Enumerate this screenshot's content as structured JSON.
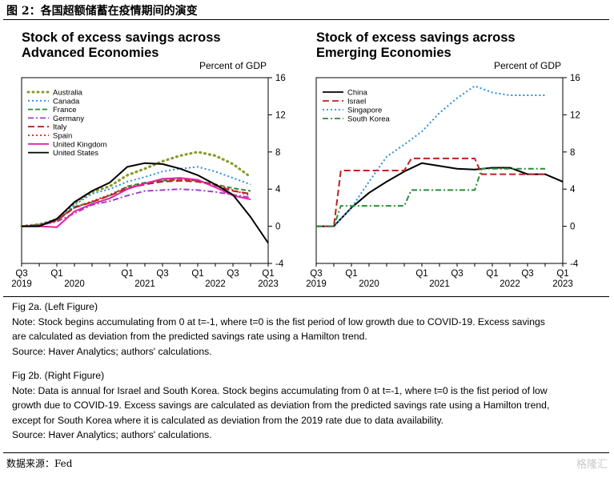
{
  "figure_title": "图 2：各国超额储蓄在疫情期间的演变",
  "source_line": "数据来源：Fed",
  "watermark": "格隆汇",
  "notes": [
    "Fig 2a. (Left Figure)",
    "Note: Stock begins accumulating from 0 at t=-1, where t=0 is the fist period of low growth due to COVID-19. Excess savings",
    "are calculated as deviation from the predicted savings rate using a Hamilton trend.",
    "Source: Haver Analytics; authors' calculations.",
    "Fig 2b. (Right Figure)",
    "Note: Data is annual for Israel and South Korea. Stock begins accumulating from 0 at t=-1, where t=0 is the fist period of low",
    "growth due to COVID-19. Excess savings are calculated as deviation from the predicted savings rate using a Hamilton trend,",
    "except for South Korea where it is calculated as deviation from the 2019 rate due to data availability.",
    "Source: Haver Analytics; authors' calculations."
  ],
  "chart_data": [
    {
      "type": "line",
      "title": "Stock of excess savings across\nAdvanced Economies",
      "ylabel": "Percent of GDP",
      "ylim": [
        -4,
        16
      ],
      "yticks": [
        "-4",
        "0",
        "4",
        "8",
        "12",
        "16"
      ],
      "xlim": [
        2019.5,
        2023.0
      ],
      "xtick_quarters": [
        "Q3",
        "Q1",
        "Q1",
        "Q3",
        "Q1",
        "Q3",
        "Q1"
      ],
      "xtick_years": [
        "2019",
        "2020",
        "2021",
        "2022",
        "2023"
      ],
      "legend_position": "top-left",
      "series": [
        {
          "name": "Australia",
          "color": "#8c9a2b",
          "dash": "dotted-thick",
          "x": [
            2019.5,
            2019.75,
            2020.0,
            2020.25,
            2020.5,
            2020.75,
            2021.0,
            2021.25,
            2021.5,
            2021.75,
            2022.0,
            2022.25,
            2022.5,
            2022.75
          ],
          "y": [
            0,
            0.2,
            0.7,
            2.5,
            3.7,
            4.3,
            5.5,
            6.2,
            7.0,
            7.6,
            8.0,
            7.6,
            6.7,
            5.3
          ]
        },
        {
          "name": "Canada",
          "color": "#2b8fe0",
          "dash": "dotted",
          "x": [
            2019.5,
            2019.75,
            2020.0,
            2020.25,
            2020.5,
            2020.75,
            2021.0,
            2021.25,
            2021.5,
            2021.75,
            2022.0,
            2022.25,
            2022.5,
            2022.75
          ],
          "y": [
            0,
            0.2,
            0.8,
            2.3,
            3.5,
            4.0,
            4.8,
            5.3,
            5.9,
            6.2,
            6.4,
            5.9,
            5.2,
            4.5
          ]
        },
        {
          "name": "France",
          "color": "#2e8b3a",
          "dash": "dash",
          "x": [
            2019.5,
            2019.75,
            2020.0,
            2020.25,
            2020.5,
            2020.75,
            2021.0,
            2021.25,
            2021.5,
            2021.75,
            2022.0,
            2022.25,
            2022.5,
            2022.75
          ],
          "y": [
            0,
            0.1,
            0.6,
            2.1,
            2.6,
            3.3,
            4.3,
            4.7,
            4.9,
            5.1,
            4.9,
            4.5,
            4.1,
            3.8
          ]
        },
        {
          "name": "Germany",
          "color": "#a040c8",
          "dash": "dashdot",
          "x": [
            2019.5,
            2019.75,
            2020.0,
            2020.25,
            2020.5,
            2020.75,
            2021.0,
            2021.25,
            2021.5,
            2021.75,
            2022.0,
            2022.25,
            2022.5,
            2022.75
          ],
          "y": [
            0,
            0.1,
            0.5,
            1.4,
            2.3,
            2.7,
            3.3,
            3.8,
            3.9,
            4.0,
            3.9,
            3.7,
            3.4,
            3.1
          ]
        },
        {
          "name": "Italy",
          "color": "#b52020",
          "dash": "longdash",
          "x": [
            2019.5,
            2019.75,
            2020.0,
            2020.25,
            2020.5,
            2020.75,
            2021.0,
            2021.25,
            2021.5,
            2021.75,
            2022.0,
            2022.25,
            2022.5,
            2022.75
          ],
          "y": [
            0,
            0.1,
            0.6,
            2.0,
            2.6,
            3.3,
            4.1,
            4.5,
            4.8,
            4.9,
            4.8,
            4.4,
            3.8,
            3.5
          ]
        },
        {
          "name": "Spain",
          "color": "#d02020",
          "dash": "dotted",
          "x": [
            2019.5,
            2019.75,
            2020.0,
            2020.25,
            2020.5,
            2020.75,
            2021.0,
            2021.25,
            2021.5,
            2021.75,
            2022.0,
            2022.25,
            2022.5,
            2022.75
          ],
          "y": [
            0,
            0.1,
            0.7,
            2.0,
            2.7,
            3.4,
            4.2,
            4.6,
            4.9,
            5.0,
            4.9,
            4.5,
            3.9,
            3.3
          ]
        },
        {
          "name": "United Kingdom",
          "color": "#e020a8",
          "dash": "solid",
          "x": [
            2019.5,
            2019.75,
            2020.0,
            2020.25,
            2020.5,
            2020.75,
            2021.0,
            2021.25,
            2021.5,
            2021.75,
            2022.0,
            2022.25,
            2022.5,
            2022.75
          ],
          "y": [
            0,
            0,
            -0.1,
            1.6,
            2.4,
            3.0,
            4.0,
            4.6,
            5.1,
            5.2,
            5.0,
            4.2,
            3.3,
            2.9
          ]
        },
        {
          "name": "United States",
          "color": "#000000",
          "dash": "solid",
          "x": [
            2019.5,
            2019.75,
            2020.0,
            2020.25,
            2020.5,
            2020.75,
            2021.0,
            2021.25,
            2021.5,
            2021.75,
            2022.0,
            2022.25,
            2022.5,
            2022.75,
            2023.0
          ],
          "y": [
            0,
            0,
            0.8,
            2.6,
            3.8,
            4.7,
            6.4,
            6.8,
            6.7,
            6.2,
            5.5,
            4.5,
            3.4,
            1.0,
            -1.8
          ]
        }
      ]
    },
    {
      "type": "line",
      "title": "Stock of excess savings across\nEmerging Economies",
      "ylabel": "Percent of GDP",
      "ylim": [
        -4,
        16
      ],
      "yticks": [
        "-4",
        "0",
        "4",
        "8",
        "12",
        "16"
      ],
      "xlim": [
        2019.5,
        2023.0
      ],
      "xtick_quarters": [
        "Q3",
        "Q1",
        "Q1",
        "Q3",
        "Q1",
        "Q3",
        "Q1"
      ],
      "xtick_years": [
        "2019",
        "2020",
        "2021",
        "2022",
        "2023"
      ],
      "legend_position": "top-left",
      "series": [
        {
          "name": "China",
          "color": "#000000",
          "dash": "solid",
          "x": [
            2019.5,
            2019.75,
            2020.0,
            2020.25,
            2020.5,
            2020.75,
            2021.0,
            2021.25,
            2021.5,
            2021.75,
            2022.0,
            2022.25,
            2022.5,
            2022.75,
            2023.0
          ],
          "y": [
            0,
            0,
            2.0,
            3.6,
            4.8,
            5.9,
            6.8,
            6.5,
            6.2,
            6.1,
            6.3,
            6.3,
            5.6,
            5.6,
            4.8
          ]
        },
        {
          "name": "Israel",
          "color": "#c02020",
          "dash": "longdash",
          "x": [
            2019.5,
            2019.75,
            2019.85,
            2020.0,
            2020.75,
            2020.85,
            2021.75,
            2021.85,
            2022.75
          ],
          "y": [
            0,
            0,
            6.0,
            6.0,
            6.0,
            7.3,
            7.3,
            5.6,
            5.6
          ]
        },
        {
          "name": "Singapore",
          "color": "#2b8fe0",
          "dash": "dotted",
          "x": [
            2019.5,
            2019.75,
            2020.0,
            2020.25,
            2020.5,
            2020.75,
            2021.0,
            2021.25,
            2021.5,
            2021.75,
            2022.0,
            2022.25,
            2022.5,
            2022.75
          ],
          "y": [
            0,
            0,
            2.0,
            4.8,
            7.5,
            8.8,
            10.2,
            12.2,
            13.8,
            15.1,
            14.4,
            14.1,
            14.1,
            14.1
          ]
        },
        {
          "name": "South Korea",
          "color": "#2e8b3a",
          "dash": "dashdot",
          "x": [
            2019.5,
            2019.75,
            2019.85,
            2020.0,
            2020.75,
            2020.85,
            2021.75,
            2021.85,
            2022.75
          ],
          "y": [
            0,
            0,
            2.2,
            2.2,
            2.2,
            3.9,
            3.9,
            6.2,
            6.2
          ]
        }
      ]
    }
  ]
}
